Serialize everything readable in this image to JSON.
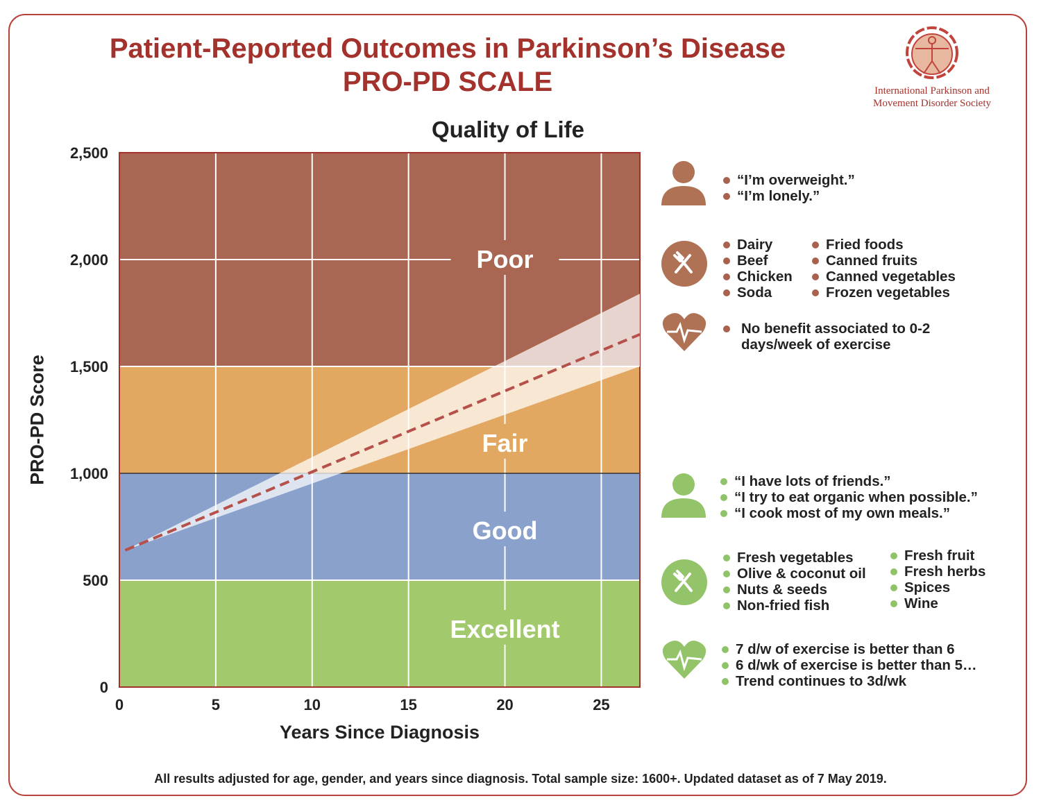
{
  "header": {
    "title_line1": "Patient-Reported Outcomes in Parkinson’s Disease",
    "title_line2": "PRO-PD SCALE",
    "logo_text": "International Parkinson and Movement Disorder Society"
  },
  "colors": {
    "brand_red": "#a3322c",
    "poor": "#a96753",
    "fair": "#e2a862",
    "good": "#8aa1cc",
    "excellent": "#a3c96d",
    "trend": "#b5504a",
    "negative_icon": "#b07255",
    "positive_icon": "#94c46a"
  },
  "chart_data": {
    "type": "line",
    "title": "Quality of Life",
    "xlabel": "Years Since Diagnosis",
    "ylabel": "PRO-PD Score",
    "xlim": [
      0,
      27
    ],
    "ylim": [
      0,
      2500
    ],
    "x_ticks": [
      0,
      5,
      10,
      15,
      20,
      25
    ],
    "y_ticks": [
      0,
      500,
      1000,
      1500,
      2000,
      2500
    ],
    "y_tick_labels": [
      "0",
      "500",
      "1,000",
      "1,500",
      "2,000",
      "2,500"
    ],
    "grid": true,
    "zones": [
      {
        "label": "Poor",
        "from": 1500,
        "to": 2500
      },
      {
        "label": "Fair",
        "from": 1000,
        "to": 1500
      },
      {
        "label": "Good",
        "from": 500,
        "to": 1000
      },
      {
        "label": "Excellent",
        "from": 0,
        "to": 500
      }
    ],
    "series": [
      {
        "style": "dashed",
        "x": [
          0.3,
          27
        ],
        "y": [
          640,
          1650
        ]
      }
    ],
    "confidence_band": {
      "x": [
        0.3,
        27
      ],
      "lower": [
        640,
        1500
      ],
      "upper": [
        640,
        1840
      ]
    }
  },
  "panels": {
    "negative_quotes": [
      "“I’m overweight.”",
      "“I’m lonely.”"
    ],
    "negative_foods_col1": [
      "Dairy",
      "Beef",
      "Chicken",
      "Soda"
    ],
    "negative_foods_col2": [
      "Fried foods",
      "Canned fruits",
      "Canned vegetables",
      "Frozen vegetables"
    ],
    "negative_exercise": [
      "No benefit associated to 0-2 days/week of exercise"
    ],
    "positive_quotes": [
      "“I have lots of friends.”",
      "“I try to eat organic when possible.”",
      "“I cook most of my own meals.”"
    ],
    "positive_foods_col1": [
      "Fresh vegetables",
      "Olive & coconut oil",
      "Nuts & seeds",
      "Non-fried fish"
    ],
    "positive_foods_col2": [
      "Fresh fruit",
      "Fresh herbs",
      "Spices",
      "Wine"
    ],
    "positive_exercise": [
      "7 d/w of exercise is better than 6",
      "6 d/wk of exercise is better than 5…",
      "Trend continues to 3d/wk"
    ]
  },
  "footnote": "All results adjusted for age, gender, and years since diagnosis. Total sample size: 1600+. Updated dataset as of 7 May 2019."
}
